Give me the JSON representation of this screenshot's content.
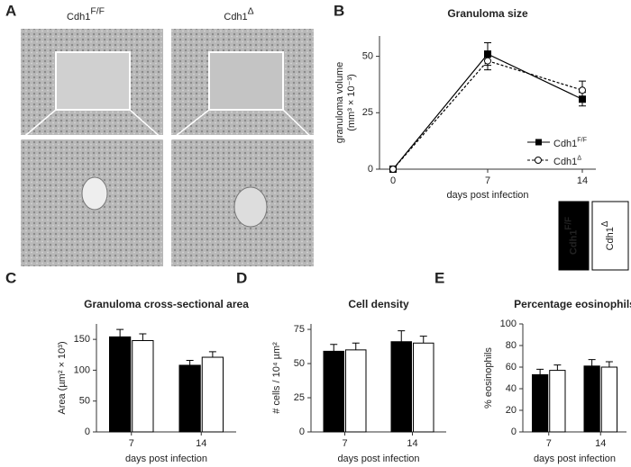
{
  "panel_a": {
    "panel": "A",
    "columns": [
      {
        "name": "Cdh1",
        "superscript": "F/F"
      },
      {
        "name": "Cdh1",
        "superscript": "Δ"
      }
    ]
  },
  "chart_data": [
    {
      "type": "line",
      "panel": "B",
      "title": "Granuloma size",
      "xlabel": "days post infection",
      "ylabel": [
        "granuloma volume",
        "(mm³ × 10⁻³)"
      ],
      "x": [
        0,
        7,
        14
      ],
      "xlim": [
        -1,
        15
      ],
      "xticks": [
        0,
        7,
        14
      ],
      "ylim": [
        0,
        59
      ],
      "yticks": [
        0,
        25,
        50
      ],
      "series": [
        {
          "name": "Cdh1",
          "superscript": "F/F",
          "color": "#000000",
          "line_style": "solid",
          "marker": "square",
          "values": [
            0,
            51,
            31
          ],
          "errors": [
            0,
            5,
            3
          ]
        },
        {
          "name": "Cdh1",
          "superscript": "Δ",
          "color": "#000000",
          "line_style": "dashed",
          "marker": "circle",
          "values": [
            0,
            48,
            35
          ],
          "errors": [
            0,
            4,
            4
          ]
        }
      ]
    },
    {
      "type": "bar",
      "panel": "C",
      "title": "Granuloma cross-sectional area",
      "xlabel": "days post infection",
      "ylabel": [
        "Area (µm² × 10³)"
      ],
      "categories": [
        "7",
        "14"
      ],
      "ylim": [
        0,
        175
      ],
      "yticks": [
        0,
        50,
        100,
        150
      ],
      "series": [
        {
          "name": "Cdh1",
          "superscript": "F/F",
          "color": "#000000",
          "values": [
            154,
            108
          ],
          "errors": [
            12,
            8
          ]
        },
        {
          "name": "Cdh1",
          "superscript": "Δ",
          "color": "#ffffff",
          "values": [
            148,
            121
          ],
          "errors": [
            11,
            9
          ]
        }
      ]
    },
    {
      "type": "bar",
      "panel": "D",
      "title": "Cell density",
      "xlabel": "days post infection",
      "ylabel": [
        "# cells / 10⁴ µm²"
      ],
      "categories": [
        "7",
        "14"
      ],
      "ylim": [
        0,
        79
      ],
      "yticks": [
        0,
        25,
        50,
        75
      ],
      "series": [
        {
          "name": "Cdh1",
          "superscript": "F/F",
          "color": "#000000",
          "values": [
            59,
            66
          ],
          "errors": [
            5,
            8
          ]
        },
        {
          "name": "Cdh1",
          "superscript": "Δ",
          "color": "#ffffff",
          "values": [
            60,
            65
          ],
          "errors": [
            5,
            5
          ]
        }
      ]
    },
    {
      "type": "bar",
      "panel": "E",
      "title": "Percentage eosinophils",
      "xlabel": "days post infection",
      "ylabel": [
        "% eosinophils"
      ],
      "categories": [
        "7",
        "14"
      ],
      "ylim": [
        0,
        100
      ],
      "yticks": [
        0,
        20,
        40,
        60,
        80,
        100
      ],
      "series": [
        {
          "name": "Cdh1",
          "superscript": "F/F",
          "color": "#000000",
          "values": [
            53,
            61
          ],
          "errors": [
            5,
            6
          ]
        },
        {
          "name": "Cdh1",
          "superscript": "Δ",
          "color": "#ffffff",
          "values": [
            57,
            60
          ],
          "errors": [
            5,
            5
          ]
        }
      ]
    }
  ]
}
